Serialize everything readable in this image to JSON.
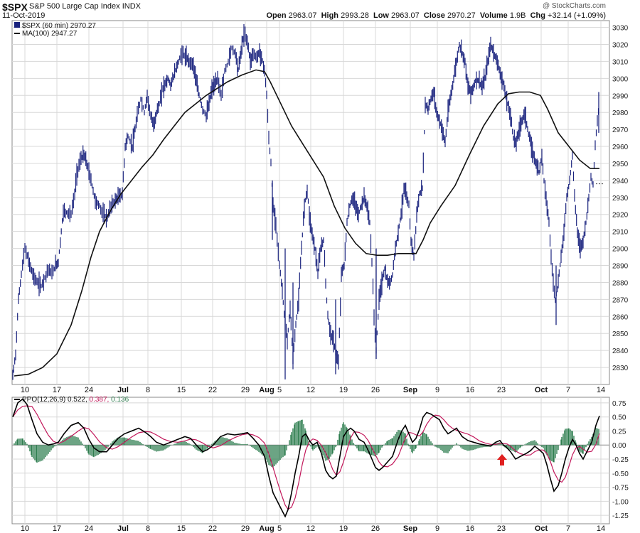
{
  "header": {
    "symbol": "$SPX",
    "name": "S&P 500 Large Cap Index",
    "exchange": "INDX",
    "date": "11-Oct-2019",
    "watermark": "@ StockCharts.com",
    "open_label": "Open",
    "open": "2963.07",
    "high_label": "High",
    "high": "2993.28",
    "low_label": "Low",
    "low": "2963.07",
    "close_label": "Close",
    "close": "2970.27",
    "volume_label": "Volume",
    "volume": "1.9B",
    "chg_label": "Chg",
    "chg": "+32.14 (+1.09%)"
  },
  "legend": {
    "price": "$SPX (60 min) 2970.27",
    "ma": "MA(100) 2947.27",
    "ppo_name": "PPO(12,26,9)",
    "ppo_v1": "0.522,",
    "ppo_v2": "0.387,",
    "ppo_v3": "0.136"
  },
  "colors": {
    "price": "#1a237e",
    "ma": "#111111",
    "ppo_line": "#000000",
    "ppo_signal": "#c2185b",
    "ppo_hist": "#2e7d4f",
    "arrow": "#e02020",
    "grid": "#d8d8d8"
  },
  "icons": {
    "arrow": "red-up-arrow-icon"
  },
  "chart_data": [
    {
      "type": "line",
      "title": "$SPX (60 min)",
      "x_tick_labels": [
        "10",
        "17",
        "24",
        "Jul",
        "8",
        "15",
        "22",
        "29",
        "Aug",
        "5",
        "12",
        "19",
        "26",
        "Sep",
        "9",
        "16",
        "23",
        "Oct",
        "7",
        "14"
      ],
      "y_ticks": [
        2830,
        2840,
        2850,
        2860,
        2870,
        2880,
        2890,
        2900,
        2910,
        2920,
        2930,
        2940,
        2950,
        2960,
        2970,
        2980,
        2990,
        3000,
        3010,
        3020,
        3030
      ],
      "ylim": [
        2820,
        3034
      ],
      "series": [
        {
          "name": "$SPX (60 min)",
          "style": "hlc-bars",
          "values_by_week": [
            2830,
            2893,
            2888,
            2920,
            2950,
            2930,
            2966,
            2985,
            3000,
            3018,
            3000,
            2880,
            2873,
            2938,
            2878,
            2890,
            2930,
            2915,
            2953,
            2980,
            3010,
            2980,
            2960,
            3005,
            2990,
            2925,
            2940,
            2970,
            2987
          ]
        },
        {
          "name": "MA(100)",
          "values_by_week": [
            2825,
            2830,
            2860,
            2890,
            2920,
            2942,
            2958,
            2972,
            2988,
            2998,
            3004,
            2970,
            2945,
            2935,
            2910,
            2895,
            2898,
            2918,
            2935,
            2960,
            2985,
            2993,
            2993,
            2980,
            2960,
            2947
          ]
        }
      ],
      "last_value": 2970.27,
      "ma_last": 2947.27
    },
    {
      "type": "line",
      "title": "PPO(12,26,9)",
      "y_ticks": [
        0.75,
        0.5,
        0.25,
        0.0,
        -0.25,
        -0.5,
        -0.75,
        -1.0,
        -1.25
      ],
      "ylim": [
        -1.4,
        0.85
      ],
      "series": [
        {
          "name": "PPO",
          "last": 0.522
        },
        {
          "name": "Signal",
          "last": 0.387
        },
        {
          "name": "Histogram",
          "last": 0.136
        }
      ]
    }
  ]
}
